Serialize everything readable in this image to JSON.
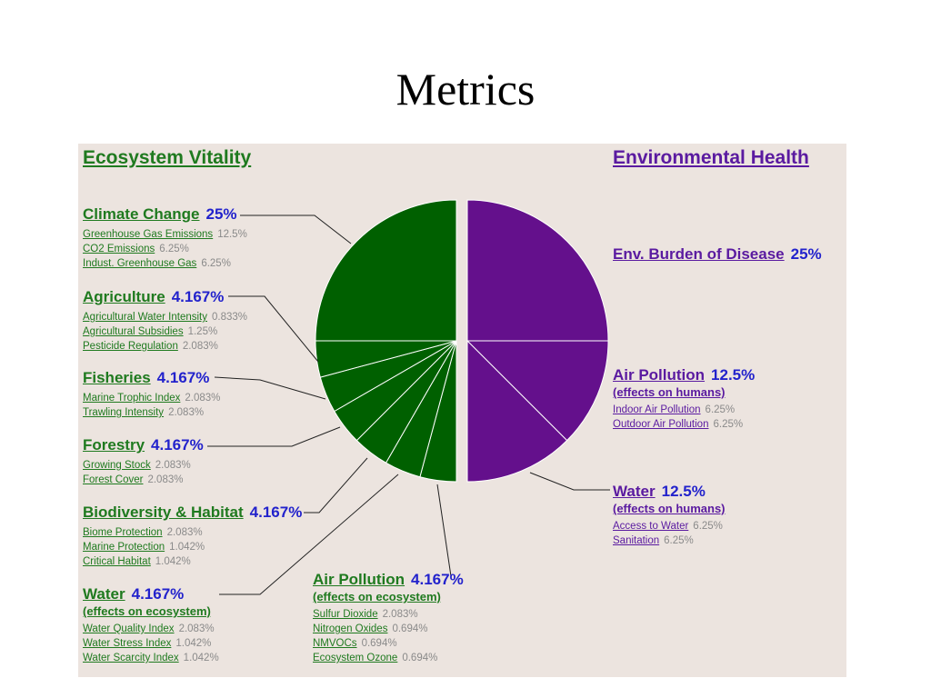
{
  "slide_title": "Metrics",
  "colors": {
    "ecosystem": "#006000",
    "environment": "#64108c",
    "ecosystem_text": "#1f7a1f",
    "environment_text": "#5a1aa0",
    "percent": "#2222cc"
  },
  "chart_data": {
    "type": "pie",
    "title": "",
    "sections": {
      "ecosystem": "Ecosystem Vitality",
      "environment": "Environmental Health"
    },
    "slices": [
      {
        "label": "Env. Burden of Disease",
        "value": 25,
        "group": "environment"
      },
      {
        "label": "Air Pollution (effects on humans)",
        "value": 12.5,
        "group": "environment"
      },
      {
        "label": "Water (effects on humans)",
        "value": 12.5,
        "group": "environment"
      },
      {
        "label": "Air Pollution (effects on ecosystem)",
        "value": 4.167,
        "group": "ecosystem"
      },
      {
        "label": "Water (effects on ecosystem)",
        "value": 4.167,
        "group": "ecosystem"
      },
      {
        "label": "Biodiversity & Habitat",
        "value": 4.167,
        "group": "ecosystem"
      },
      {
        "label": "Forestry",
        "value": 4.167,
        "group": "ecosystem"
      },
      {
        "label": "Fisheries",
        "value": 4.167,
        "group": "ecosystem"
      },
      {
        "label": "Agriculture",
        "value": 4.167,
        "group": "ecosystem"
      },
      {
        "label": "Climate Change",
        "value": 25,
        "group": "ecosystem"
      }
    ]
  },
  "categories": {
    "climate": {
      "name": "Climate Change",
      "pct": "25%",
      "items": [
        {
          "name": "Greenhouse Gas Emissions",
          "w": "12.5%"
        },
        {
          "name": "CO2 Emissions",
          "w": "6.25%"
        },
        {
          "name": "Indust. Greenhouse Gas",
          "w": "6.25%"
        }
      ]
    },
    "agriculture": {
      "name": "Agriculture",
      "pct": "4.167%",
      "items": [
        {
          "name": "Agricultural Water Intensity",
          "w": "0.833%"
        },
        {
          "name": "Agricultural Subsidies",
          "w": "1.25%"
        },
        {
          "name": "Pesticide Regulation",
          "w": "2.083%"
        }
      ]
    },
    "fisheries": {
      "name": "Fisheries",
      "pct": "4.167%",
      "items": [
        {
          "name": "Marine Trophic Index",
          "w": "2.083%"
        },
        {
          "name": "Trawling Intensity",
          "w": "2.083%"
        }
      ]
    },
    "forestry": {
      "name": "Forestry",
      "pct": "4.167%",
      "items": [
        {
          "name": "Growing Stock",
          "w": "2.083%"
        },
        {
          "name": "Forest Cover",
          "w": "2.083%"
        }
      ]
    },
    "biodiversity": {
      "name": "Biodiversity & Habitat",
      "pct": "4.167%",
      "items": [
        {
          "name": "Biome Protection",
          "w": "2.083%"
        },
        {
          "name": "Marine Protection",
          "w": "1.042%"
        },
        {
          "name": "Critical Habitat",
          "w": "1.042%"
        }
      ]
    },
    "water_eco": {
      "name": "Water",
      "pct": "4.167%",
      "qual": "(effects on ecosystem)",
      "items": [
        {
          "name": "Water Quality Index",
          "w": "2.083%"
        },
        {
          "name": "Water Stress Index",
          "w": "1.042%"
        },
        {
          "name": "Water Scarcity Index",
          "w": "1.042%"
        }
      ]
    },
    "air_eco": {
      "name": "Air Pollution",
      "pct": "4.167%",
      "qual": "(effects on ecosystem)",
      "items": [
        {
          "name": "Sulfur Dioxide",
          "w": "2.083%"
        },
        {
          "name": "Nitrogen Oxides",
          "w": "0.694%"
        },
        {
          "name": "NMVOCs",
          "w": "0.694%"
        },
        {
          "name": "Ecosystem Ozone",
          "w": "0.694%"
        }
      ]
    },
    "burden": {
      "name": "Env. Burden of Disease",
      "pct": "25%",
      "items": []
    },
    "air_human": {
      "name": "Air Pollution",
      "pct": "12.5%",
      "qual": "(effects on humans)",
      "items": [
        {
          "name": "Indoor Air Pollution",
          "w": "6.25%"
        },
        {
          "name": "Outdoor Air Pollution",
          "w": "6.25%"
        }
      ]
    },
    "water_human": {
      "name": "Water",
      "pct": "12.5%",
      "qual": "(effects on humans)",
      "items": [
        {
          "name": "Access to Water",
          "w": "6.25%"
        },
        {
          "name": "Sanitation",
          "w": "6.25%"
        }
      ]
    }
  }
}
